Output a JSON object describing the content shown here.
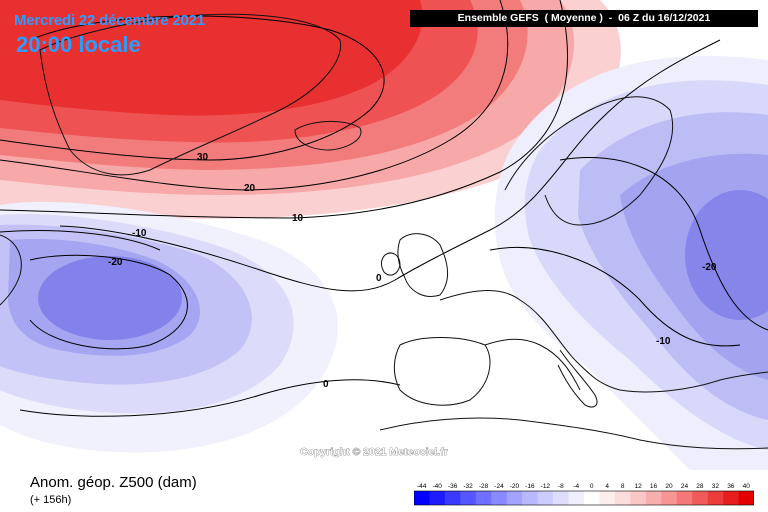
{
  "header": {
    "date": "Mercredi 22 décembre 2021",
    "time": "20:00 locale",
    "run_info": "Ensemble GEFS  ( Moyenne )  -  06 Z du 16/12/2021"
  },
  "map": {
    "watermark": "Copyright © 2021 Meteociel.fr",
    "contour_labels": [
      "30",
      "20",
      "10",
      "0",
      "-10",
      "-20",
      "-20",
      "-10",
      "0"
    ],
    "colors": {
      "positive": "#e8262a",
      "negative": "#3d3de8",
      "land_outline": "#000000"
    }
  },
  "footer": {
    "parameter": "Anom. géop. Z500 (dam)",
    "lead_time": "(+ 156h)"
  },
  "legend": {
    "ticks": [
      "-44",
      "-40",
      "-36",
      "-32",
      "-28",
      "-24",
      "-20",
      "-16",
      "-12",
      "-8",
      "-4",
      "0",
      "4",
      "8",
      "12",
      "16",
      "20",
      "24",
      "28",
      "32",
      "36",
      "40"
    ],
    "colors": [
      "#0000ff",
      "#1c1cff",
      "#3a3aff",
      "#5656ff",
      "#7070ff",
      "#8a8aff",
      "#a2a2ff",
      "#b8b8ff",
      "#ccccff",
      "#dedefc",
      "#eeeefd",
      "#ffffff",
      "#fdeeee",
      "#fcdcdc",
      "#fbc6c6",
      "#f9aeae",
      "#f79494",
      "#f47878",
      "#f05a5a",
      "#ec3c3c",
      "#e81e1e",
      "#e40000"
    ]
  }
}
